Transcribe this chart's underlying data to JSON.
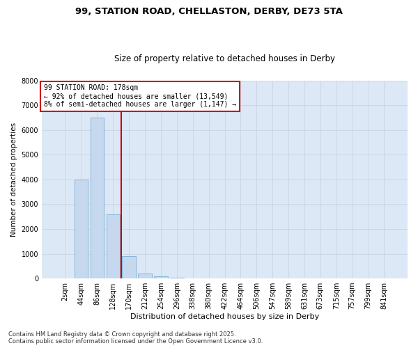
{
  "title_line1": "99, STATION ROAD, CHELLASTON, DERBY, DE73 5TA",
  "title_line2": "Size of property relative to detached houses in Derby",
  "xlabel": "Distribution of detached houses by size in Derby",
  "ylabel": "Number of detached properties",
  "categories": [
    "2sqm",
    "44sqm",
    "86sqm",
    "128sqm",
    "170sqm",
    "212sqm",
    "254sqm",
    "296sqm",
    "338sqm",
    "380sqm",
    "422sqm",
    "464sqm",
    "506sqm",
    "547sqm",
    "589sqm",
    "631sqm",
    "673sqm",
    "715sqm",
    "757sqm",
    "799sqm",
    "841sqm"
  ],
  "values": [
    0,
    4000,
    6500,
    2600,
    900,
    200,
    80,
    30,
    10,
    5,
    2,
    0,
    0,
    0,
    0,
    0,
    0,
    0,
    0,
    0,
    0
  ],
  "bar_color": "#c5d8ed",
  "bar_edge_color": "#7aafd4",
  "vline_index": 3.5,
  "vline_color": "#cc0000",
  "annotation_text": "99 STATION ROAD: 178sqm\n← 92% of detached houses are smaller (13,549)\n8% of semi-detached houses are larger (1,147) →",
  "annotation_box_color": "#ffffff",
  "annotation_box_edge": "#cc0000",
  "ylim": [
    0,
    8000
  ],
  "yticks": [
    0,
    1000,
    2000,
    3000,
    4000,
    5000,
    6000,
    7000,
    8000
  ],
  "grid_color": "#c8d8e8",
  "background_color": "#dce8f5",
  "footer_line1": "Contains HM Land Registry data © Crown copyright and database right 2025.",
  "footer_line2": "Contains public sector information licensed under the Open Government Licence v3.0."
}
